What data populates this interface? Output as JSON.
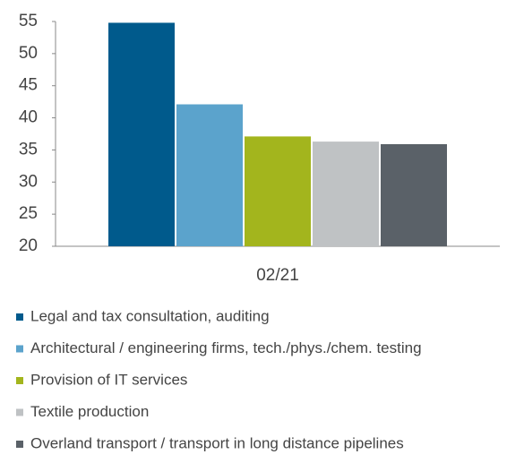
{
  "chart_data": {
    "type": "bar",
    "categories": [
      "02/21"
    ],
    "series": [
      {
        "name": "Legal and tax consultation, auditing",
        "color": "#005a8c",
        "values": [
          54.8
        ]
      },
      {
        "name": "Architectural / engineering firms, tech./phys./chem. testing",
        "color": "#5ba3cc",
        "values": [
          42.1
        ]
      },
      {
        "name": "Provision of IT services",
        "color": "#a3b51d",
        "values": [
          37.1
        ]
      },
      {
        "name": "Textile production",
        "color": "#bfc2c4",
        "values": [
          36.3
        ]
      },
      {
        "name": "Overland transport / transport in long distance pipelines",
        "color": "#5a6168",
        "values": [
          35.9
        ]
      }
    ],
    "ylim": [
      20,
      55
    ],
    "yticks": [
      20,
      25,
      30,
      35,
      40,
      45,
      50,
      55
    ],
    "grid": false,
    "legend": "bottom"
  }
}
